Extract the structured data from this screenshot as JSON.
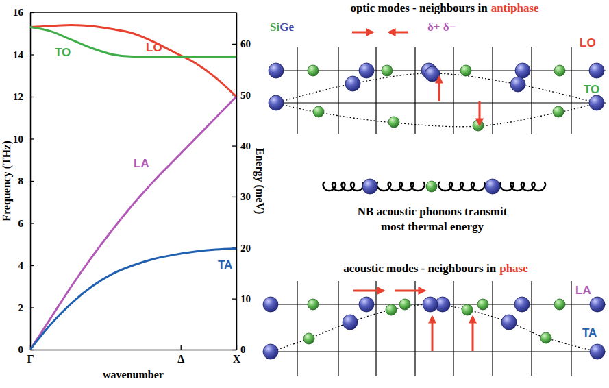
{
  "chart_data": {
    "type": "line",
    "x": [
      0,
      0.1,
      0.2,
      0.3,
      0.4,
      0.5,
      0.6,
      0.7,
      0.8,
      0.9,
      1
    ],
    "xlim": [
      0,
      1
    ],
    "xticks": [
      {
        "value": 0,
        "label": "Γ"
      },
      {
        "value": 0.73,
        "label": "Δ"
      },
      {
        "value": 1,
        "label": "X"
      }
    ],
    "xlabel": "wavenumber",
    "ylabel": "Frequency (THz)",
    "ylim": [
      0,
      16
    ],
    "yticks": [
      0,
      2,
      4,
      6,
      8,
      10,
      12,
      14,
      16
    ],
    "y2label": "Energy (meV)",
    "y2lim": [
      0,
      66.17
    ],
    "y2ticks": [
      0,
      10,
      20,
      30,
      40,
      50,
      60
    ],
    "grid": false,
    "series": [
      {
        "name": "LO",
        "color": "#e8412f",
        "values": [
          15.3,
          15.35,
          15.4,
          15.35,
          15.2,
          15.0,
          14.6,
          14.1,
          13.6,
          12.9,
          12.0
        ]
      },
      {
        "name": "TO",
        "color": "#3fae49",
        "values": [
          15.3,
          15.1,
          14.7,
          14.3,
          14.0,
          13.9,
          13.9,
          13.9,
          13.9,
          13.9,
          13.9
        ]
      },
      {
        "name": "LA",
        "color": "#b35ab8",
        "values": [
          0,
          1.5,
          3.0,
          4.4,
          5.7,
          6.9,
          8.0,
          9.0,
          10.0,
          11.0,
          12.0
        ]
      },
      {
        "name": "TA",
        "color": "#2060b0",
        "values": [
          0,
          1.2,
          2.2,
          3.0,
          3.6,
          4.0,
          4.3,
          4.5,
          4.65,
          4.75,
          4.8
        ]
      }
    ]
  },
  "diagram": {
    "optic_panel": {
      "title": [
        "optic modes - neighbours in",
        "antiphase"
      ],
      "species": [
        {
          "label": "Si",
          "color": "#3fae49"
        },
        {
          "label": "Ge",
          "color": "#3c46a8"
        }
      ],
      "charges": "δ+ δ−",
      "modes": [
        {
          "label": "LO",
          "color": "#e8412f"
        },
        {
          "label": "TO",
          "color": "#3fae49"
        }
      ]
    },
    "note": "NB acoustic phonons transmit most thermal energy",
    "acoustic_panel": {
      "title": [
        "acoustic modes - neighbours in",
        "phase"
      ],
      "modes": [
        {
          "label": "LA",
          "color": "#b35ab8"
        },
        {
          "label": "TA",
          "color": "#2060b0"
        }
      ]
    }
  }
}
